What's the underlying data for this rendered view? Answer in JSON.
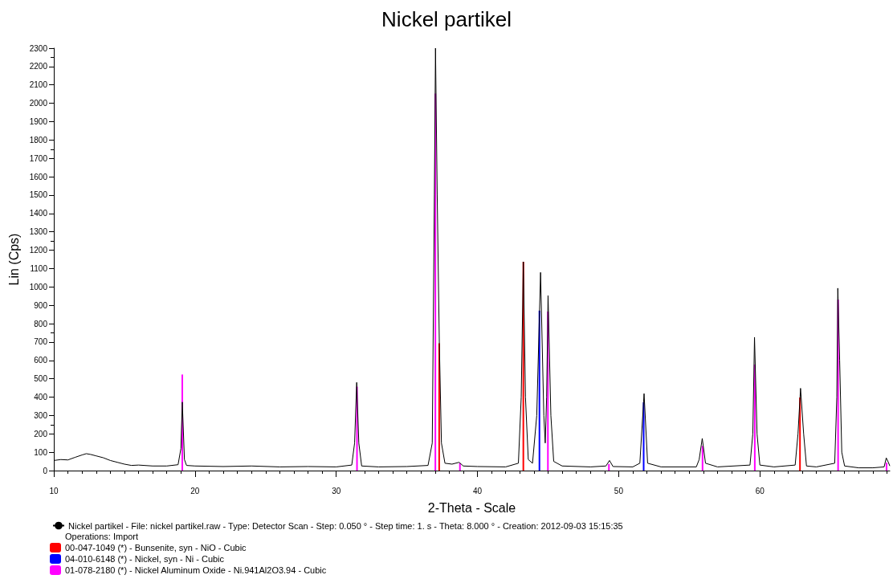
{
  "chart_data": {
    "type": "line",
    "title": "Nickel partikel",
    "xlabel": "2-Theta - Scale",
    "ylabel": "Lin (Cps)",
    "xlim": [
      10,
      69.2
    ],
    "xticks": [
      10,
      20,
      30,
      40,
      50,
      60
    ],
    "ylim": [
      0,
      2300
    ],
    "yticks": [
      0,
      100,
      200,
      300,
      400,
      500,
      600,
      700,
      800,
      900,
      1000,
      1100,
      1200,
      1300,
      1400,
      1500,
      1600,
      1700,
      1800,
      1900,
      2000,
      2100,
      2200,
      2300
    ],
    "grid": false,
    "legend": "bottom left",
    "marker": "none",
    "line_style": "solid",
    "annotations": [
      "Operations: Import"
    ],
    "series": [
      {
        "name": "Nickel partikel - File: nickel partikel.raw - Type: Detector Scan - Step: 0.050 ° - Step time: 1. s - Theta: 8.000 ° - Creation: 2012-09-03 15:15:35",
        "color": "#000000",
        "x": [
          10,
          10.5,
          11,
          11.5,
          12,
          12.3,
          12.6,
          13,
          13.5,
          14,
          14.5,
          15,
          15.5,
          16,
          17,
          18,
          18.8,
          19.0,
          19.1,
          19.25,
          19.4,
          20,
          22,
          24,
          26,
          28,
          30,
          31.1,
          31.3,
          31.45,
          31.6,
          31.8,
          33,
          35,
          36.5,
          36.8,
          36.95,
          37.03,
          37.15,
          37.3,
          37.45,
          37.7,
          38.2,
          38.7,
          39.0,
          40,
          42,
          42.9,
          43.1,
          43.25,
          43.4,
          43.6,
          43.9,
          44.2,
          44.47,
          44.7,
          44.8,
          44.9,
          45.0,
          45.2,
          45.4,
          46,
          48,
          49.1,
          49.35,
          49.6,
          51,
          51.5,
          51.8,
          52.05,
          53,
          55.5,
          55.7,
          55.92,
          56.15,
          57,
          59.3,
          59.5,
          59.62,
          59.8,
          60,
          61,
          62.5,
          62.7,
          62.88,
          63.1,
          63.3,
          64,
          65.3,
          65.45,
          65.52,
          65.65,
          65.8,
          66,
          67,
          68,
          68.8,
          68.95,
          69.1,
          69.2
        ],
        "values": [
          55,
          60,
          58,
          72,
          85,
          92,
          88,
          80,
          70,
          55,
          45,
          35,
          28,
          30,
          25,
          25,
          32,
          120,
          373,
          60,
          28,
          25,
          22,
          25,
          20,
          22,
          20,
          30,
          150,
          480,
          150,
          25,
          20,
          22,
          28,
          150,
          1500,
          2300,
          1500,
          700,
          150,
          40,
          35,
          45,
          25,
          22,
          20,
          40,
          400,
          1137,
          400,
          60,
          40,
          300,
          1079,
          300,
          150,
          400,
          953,
          300,
          50,
          25,
          20,
          25,
          55,
          22,
          20,
          40,
          419,
          40,
          20,
          20,
          60,
          175,
          40,
          20,
          30,
          200,
          726,
          200,
          30,
          20,
          30,
          200,
          448,
          200,
          25,
          20,
          40,
          400,
          993,
          600,
          100,
          25,
          15,
          15,
          20,
          69,
          45,
          25
        ]
      },
      {
        "name": "00-047-1049 (*) - Bunsenite, syn - NiO - Cubic",
        "type": "bar",
        "color": "#ff0000",
        "x": [
          37.29,
          43.25,
          62.84
        ],
        "values": [
          693,
          1137,
          398
        ]
      },
      {
        "name": "04-010-6148 (*) - Nickel, syn - Ni - Cubic",
        "type": "bar",
        "color": "#0000ff",
        "x": [
          44.39,
          51.77
        ],
        "values": [
          871,
          372
        ]
      },
      {
        "name": "01-078-2180 (*) - Nickel Aluminum Oxide - Ni.941Al2O3.94 - Cubic",
        "type": "bar",
        "color": "#ff00ff",
        "x": [
          19.1,
          31.47,
          37.02,
          38.76,
          44.99,
          49.31,
          55.94,
          59.64,
          65.54,
          68.97
        ],
        "values": [
          523,
          457,
          2053,
          40,
          866,
          36,
          134,
          577,
          931,
          43
        ]
      }
    ]
  }
}
